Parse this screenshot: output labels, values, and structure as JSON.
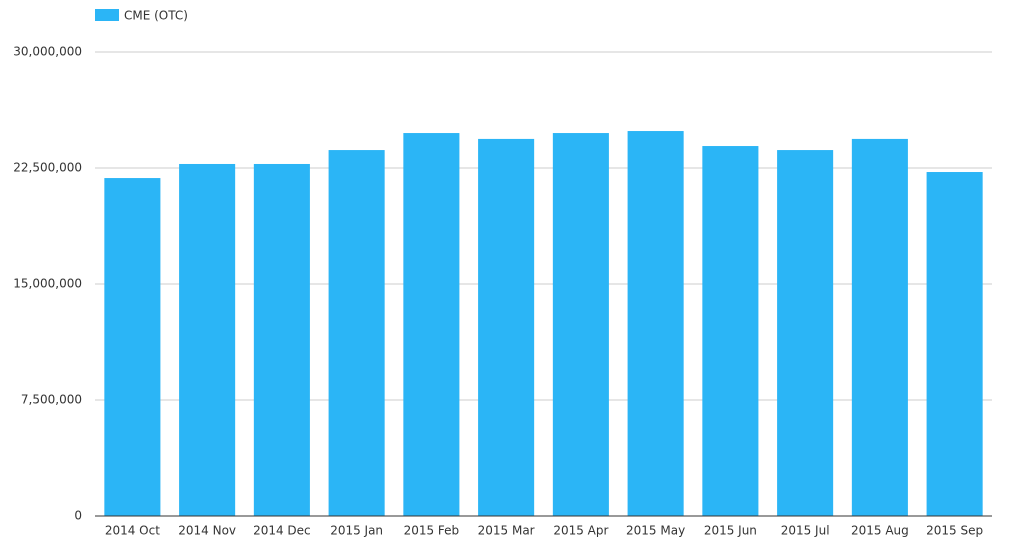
{
  "chart_data": {
    "type": "bar",
    "categories": [
      "2014 Oct",
      "2014 Nov",
      "2014 Dec",
      "2015 Jan",
      "2015 Feb",
      "2015 Mar",
      "2015 Apr",
      "2015 May",
      "2015 Jun",
      "2015 Jul",
      "2015 Aug",
      "2015 Sep"
    ],
    "series": [
      {
        "name": "CME (OTC)",
        "color": "#2bb5f6",
        "values": [
          21850000,
          22760000,
          22760000,
          23660000,
          24760000,
          24380000,
          24760000,
          24890000,
          23920000,
          23660000,
          24380000,
          22240000
        ]
      }
    ],
    "ylim": [
      0,
      30000000
    ],
    "yticks": [
      0,
      {
        "value": 7500000,
        "label": "7,500,000"
      },
      {
        "value": 15000000,
        "label": "15,000,000"
      },
      {
        "value": 22500000,
        "label": "22,500,000"
      },
      {
        "value": 30000000,
        "label": "30,000,000"
      }
    ],
    "grid": true,
    "legend": "top-left"
  }
}
